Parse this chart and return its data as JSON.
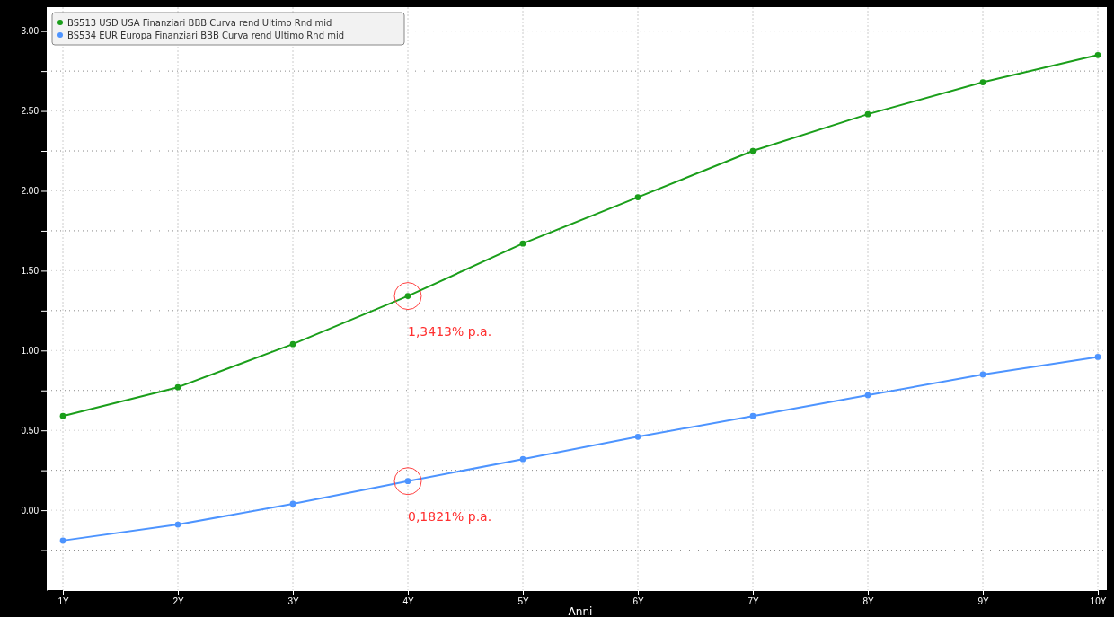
{
  "chart_data": {
    "type": "line",
    "xlabel": "Anni",
    "categories": [
      "1Y",
      "2Y",
      "3Y",
      "4Y",
      "5Y",
      "6Y",
      "7Y",
      "8Y",
      "9Y",
      "10Y"
    ],
    "series": [
      {
        "name": "BS513 USD USA Finanziari BBB Curva rend Ultimo Rnd mid",
        "color": "#1a9e1a",
        "values": [
          0.59,
          0.77,
          1.04,
          1.3413,
          1.67,
          1.96,
          2.25,
          2.48,
          2.68,
          2.85
        ]
      },
      {
        "name": "BS534 EUR Europa Finanziari BBB Curva rend Ultimo Rnd mid",
        "color": "#4d94ff",
        "values": [
          -0.19,
          -0.09,
          0.04,
          0.1821,
          0.32,
          0.46,
          0.59,
          0.72,
          0.85,
          0.96
        ]
      }
    ],
    "ylim": [
      -0.5,
      3.15
    ],
    "yticks": [
      {
        "value": -0.25,
        "label": null
      },
      "0.00",
      {
        "value": 0.25,
        "label": null
      },
      {
        "value": 0.5,
        "label": "0.50"
      },
      {
        "value": 0.75,
        "label": null
      },
      {
        "value": 1,
        "label": "1.00"
      },
      {
        "value": 1.25,
        "label": null
      },
      {
        "value": 1.5,
        "label": "1.50"
      },
      {
        "value": 1.75,
        "label": null
      },
      {
        "value": 2,
        "label": "2.00"
      },
      {
        "value": 2.25,
        "label": null
      },
      {
        "value": 2.5,
        "label": "2.50"
      },
      {
        "value": 2.75,
        "label": null
      },
      {
        "value": 3,
        "label": "3.00"
      }
    ],
    "grid": true,
    "legend": "top left",
    "marker": "circle",
    "line_style": "solid",
    "annotations": [
      {
        "text": "1,3413% p.a.",
        "x": "4Y",
        "y": 1.3413
      },
      {
        "text": "0,1821% p.a.",
        "x": "4Y",
        "y": 0.1821
      }
    ]
  }
}
